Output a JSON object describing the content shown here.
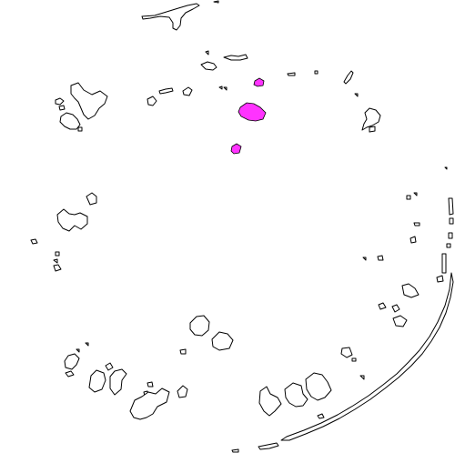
{
  "map": {
    "type": "island-outline-map",
    "background_color": "#ffffff",
    "outline_color": "#000000",
    "highlight_color": "#ff33ff",
    "highlighted_island_count": 3,
    "labels": []
  }
}
